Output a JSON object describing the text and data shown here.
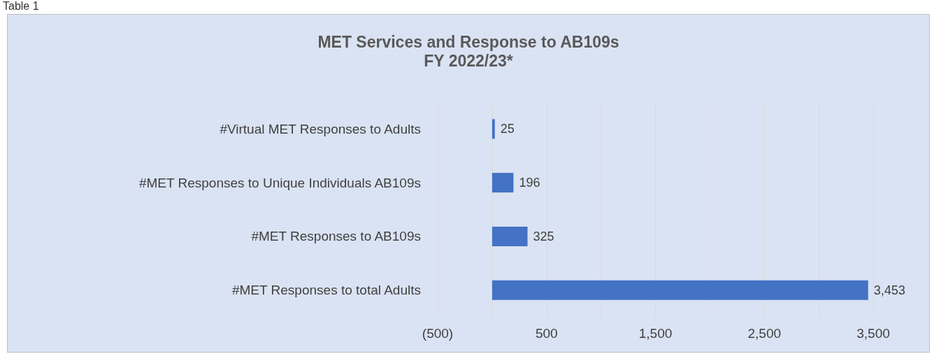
{
  "chart_data": {
    "type": "bar",
    "orientation": "horizontal",
    "title": "MET Services and Response to AB109s",
    "subtitle": "FY 2022/23*",
    "annotations": [
      "Table 1"
    ],
    "categories": [
      "#Virtual MET Responses to Adults",
      "#MET Responses to Unique Individuals AB109s",
      "#MET Responses to AB109s",
      "#MET Responses to total Adults"
    ],
    "values": [
      25,
      196,
      325,
      3453
    ],
    "value_labels": [
      "25",
      "196",
      "325",
      "3,453"
    ],
    "color": "#4472c4",
    "xlim": [
      -500,
      3500
    ],
    "xticks": [
      {
        "value": -500,
        "label": "(500)"
      },
      {
        "value": 0,
        "label": null
      },
      {
        "value": 500,
        "label": "500"
      },
      {
        "value": 1000,
        "label": null
      },
      {
        "value": 1500,
        "label": "1,500"
      },
      {
        "value": 2000,
        "label": null
      },
      {
        "value": 2500,
        "label": "2,500"
      },
      {
        "value": 3000,
        "label": null
      },
      {
        "value": 3500,
        "label": "3,500"
      }
    ],
    "grid": "x"
  }
}
